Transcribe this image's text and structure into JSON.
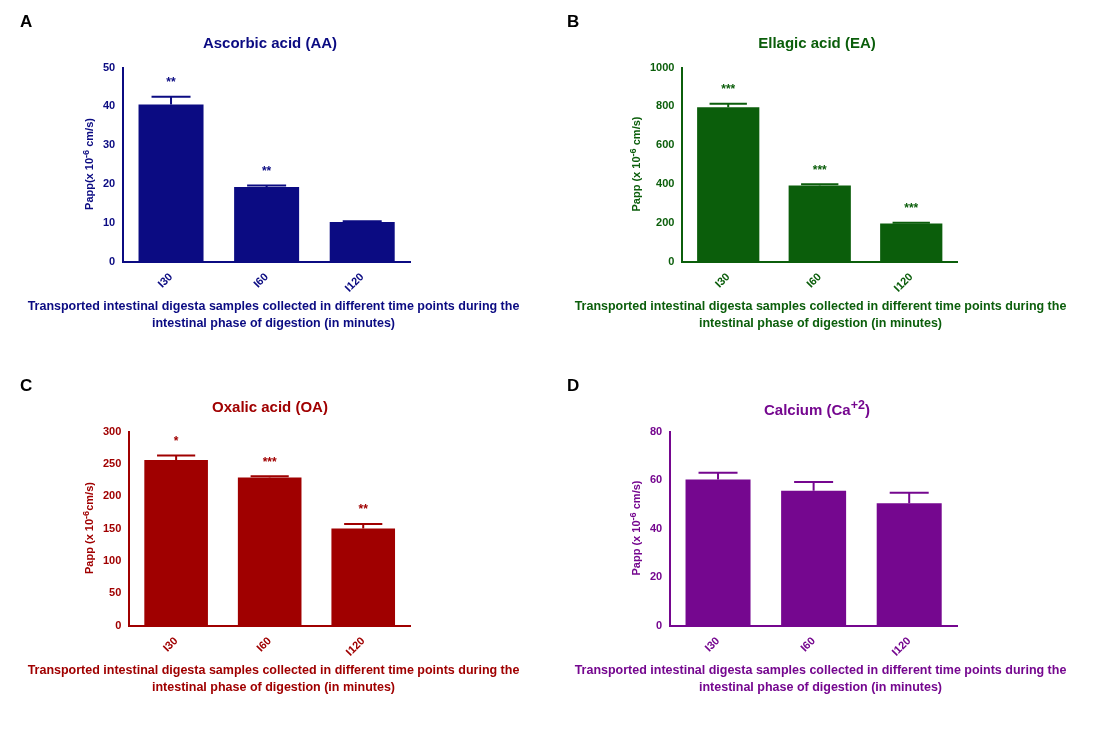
{
  "chart_data": [
    {
      "type": "bar",
      "title": "Ascorbic acid  (AA)",
      "xlabel": "Transported intestinal digesta samples collected in different time points during the intestinal phase of digestion (in minutes)",
      "ylabel": "Papp(x 10$^{-6}$ cm/s)",
      "categories": [
        "I30",
        "I60",
        "I120"
      ],
      "values": [
        40.5,
        19.2,
        10.2
      ],
      "errors": [
        [
          40.5,
          42.5
        ],
        [
          19.2,
          19.6
        ],
        [
          10.2,
          10.4
        ]
      ],
      "color": "#0b0b82",
      "ylim": [
        0,
        50
      ],
      "yticks": [
        0,
        10,
        20,
        30,
        40,
        50
      ],
      "annotations": [
        "A",
        "**",
        "**"
      ]
    },
    {
      "type": "bar",
      "title": "Ellagic acid (EA)",
      "xlabel": "Transported intestinal digesta samples collected in different time points during the intestinal phase of digestion (in minutes)",
      "ylabel": "Papp (x 10$^{-6}$ cm/s)",
      "categories": [
        "I30",
        "I60",
        "I120"
      ],
      "values": [
        795,
        392,
        196
      ],
      "errors": [
        [
          795,
          813
        ],
        [
          392,
          398
        ],
        [
          196,
          200
        ]
      ],
      "color": "#0b5e0b",
      "ylim": [
        0,
        1000
      ],
      "yticks": [
        0,
        200,
        400,
        600,
        800,
        1000
      ],
      "annotations": [
        "B",
        "***",
        "***",
        "***"
      ]
    },
    {
      "type": "bar",
      "title": "Oxalic acid (OA)",
      "xlabel": "Transported intestinal digesta samples collected in different time points during the intestinal phase of digestion (in minutes)",
      "ylabel": "Papp (x 10$^{-6}$cm/s)",
      "categories": [
        "I30",
        "I60",
        "I120"
      ],
      "values": [
        256,
        229,
        150
      ],
      "errors": [
        [
          256,
          263
        ],
        [
          229,
          231
        ],
        [
          150,
          157
        ]
      ],
      "color": "#a00000",
      "ylim": [
        0,
        300
      ],
      "yticks": [
        0,
        50,
        100,
        150,
        200,
        250,
        300
      ],
      "annotations": [
        "C",
        "*",
        "***",
        "**"
      ]
    },
    {
      "type": "bar",
      "title": "Calcium (Ca$^{+2}$)",
      "xlabel": "Transported intestinal digesta samples collected in different time points during the intestinal phase of digestion (in minutes)",
      "ylabel": "Papp (x 10$^{-6}$ cm/s)",
      "categories": [
        "I30",
        "I60",
        "I120"
      ],
      "values": [
        60.2,
        55.6,
        50.4
      ],
      "errors": [
        [
          60.2,
          63
        ],
        [
          55.6,
          59.2
        ],
        [
          50.4,
          54.8
        ]
      ],
      "color": "#75078f",
      "ylim": [
        0,
        80
      ],
      "yticks": [
        0,
        20,
        40,
        60,
        80
      ],
      "annotations": [
        "D"
      ]
    }
  ]
}
